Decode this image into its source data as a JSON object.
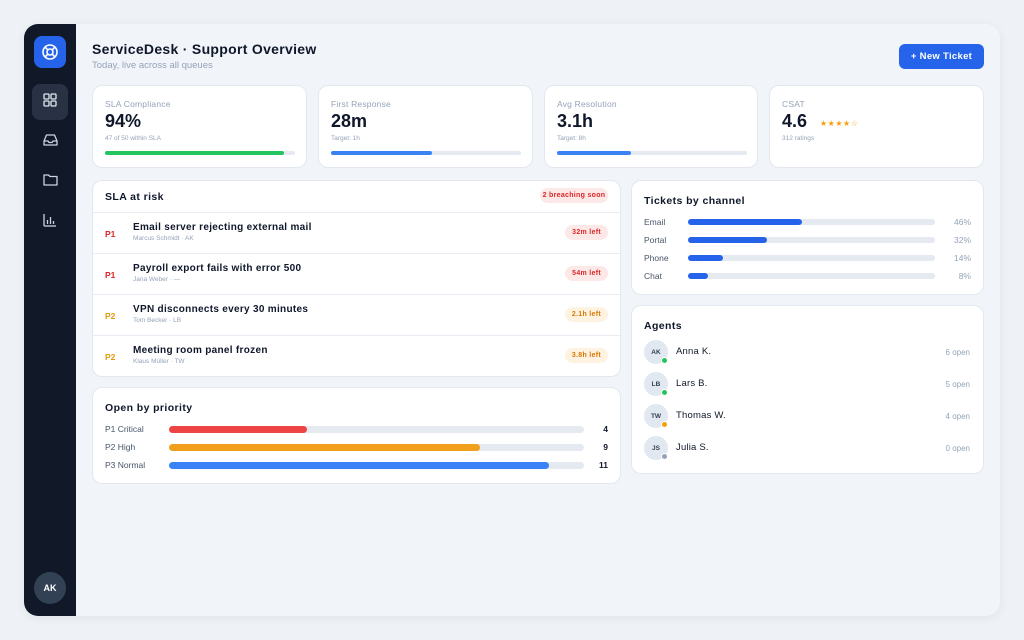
{
  "header": {
    "title": "ServiceDesk · Support Overview",
    "subtitle": "Today, live across all queues",
    "new_ticket_label": "+ New Ticket"
  },
  "sidebar": {
    "items": [
      {
        "icon": "grid-icon",
        "active": true
      },
      {
        "icon": "inbox-icon",
        "active": false
      },
      {
        "icon": "folder-icon",
        "active": false
      },
      {
        "icon": "bar-chart-icon",
        "active": false
      }
    ],
    "user_initials": "AK"
  },
  "kpis": [
    {
      "label": "SLA Compliance",
      "value": "94%",
      "sub": "47 of 50 within SLA",
      "progress": 0.94,
      "color": "#22c55e"
    },
    {
      "label": "First Response",
      "value": "28m",
      "sub": "Target: 1h",
      "progress": 0.53,
      "color": "#3b82f6"
    },
    {
      "label": "Avg Resolution",
      "value": "3.1h",
      "sub": "Target: 8h",
      "progress": 0.39,
      "color": "#3b82f6"
    },
    {
      "label": "CSAT",
      "value": "4.6",
      "sub": "312 ratings",
      "stars": "★★★★☆",
      "rating": 4.6
    }
  ],
  "sla_at_risk": {
    "title": "SLA at risk",
    "badge": "2 breaching soon",
    "rows": [
      {
        "priority": "P1",
        "title": "Email server rejecting external mail",
        "meta": "Marcus Schmidt · AK",
        "time_left": "32m left",
        "severity": "critical"
      },
      {
        "priority": "P1",
        "title": "Payroll export fails with error 500",
        "meta": "Jana Weber · —",
        "time_left": "54m left",
        "severity": "critical"
      },
      {
        "priority": "P2",
        "title": "VPN disconnects every 30 minutes",
        "meta": "Tom Becker · LB",
        "time_left": "2.1h left",
        "severity": "warning"
      },
      {
        "priority": "P2",
        "title": "Meeting room panel frozen",
        "meta": "Klaus Müller · TW",
        "time_left": "3.8h left",
        "severity": "warning"
      }
    ]
  },
  "open_by_priority": {
    "title": "Open by priority",
    "max": 12,
    "rows": [
      {
        "label": "P1 Critical",
        "count": 4,
        "color": "#ef4444"
      },
      {
        "label": "P2 High",
        "count": 9,
        "color": "#f0a01c"
      },
      {
        "label": "P3 Normal",
        "count": 11,
        "color": "#3b82f6"
      }
    ]
  },
  "tickets_by_channel": {
    "title": "Tickets by channel",
    "rows": [
      {
        "label": "Email",
        "pct": 46,
        "pct_label": "46%"
      },
      {
        "label": "Portal",
        "pct": 32,
        "pct_label": "32%"
      },
      {
        "label": "Phone",
        "pct": 14,
        "pct_label": "14%"
      },
      {
        "label": "Chat",
        "pct": 8,
        "pct_label": "8%"
      }
    ]
  },
  "agents": {
    "title": "Agents",
    "rows": [
      {
        "initials": "AK",
        "name": "Anna K.",
        "open": "6 open",
        "status": "online",
        "status_color": "#22c55e"
      },
      {
        "initials": "LB",
        "name": "Lars B.",
        "open": "5 open",
        "status": "online",
        "status_color": "#22c55e"
      },
      {
        "initials": "TW",
        "name": "Thomas W.",
        "open": "4 open",
        "status": "away",
        "status_color": "#f59e0b"
      },
      {
        "initials": "JS",
        "name": "Julia S.",
        "open": "0 open",
        "status": "offline",
        "status_color": "#94a3b8"
      }
    ]
  },
  "colors": {
    "accent": "#2563eb",
    "critical_text": "#dc2626",
    "critical_bg": "#fde8e8",
    "warning_text": "#d97706",
    "warning_bg": "#fdf3e0"
  }
}
